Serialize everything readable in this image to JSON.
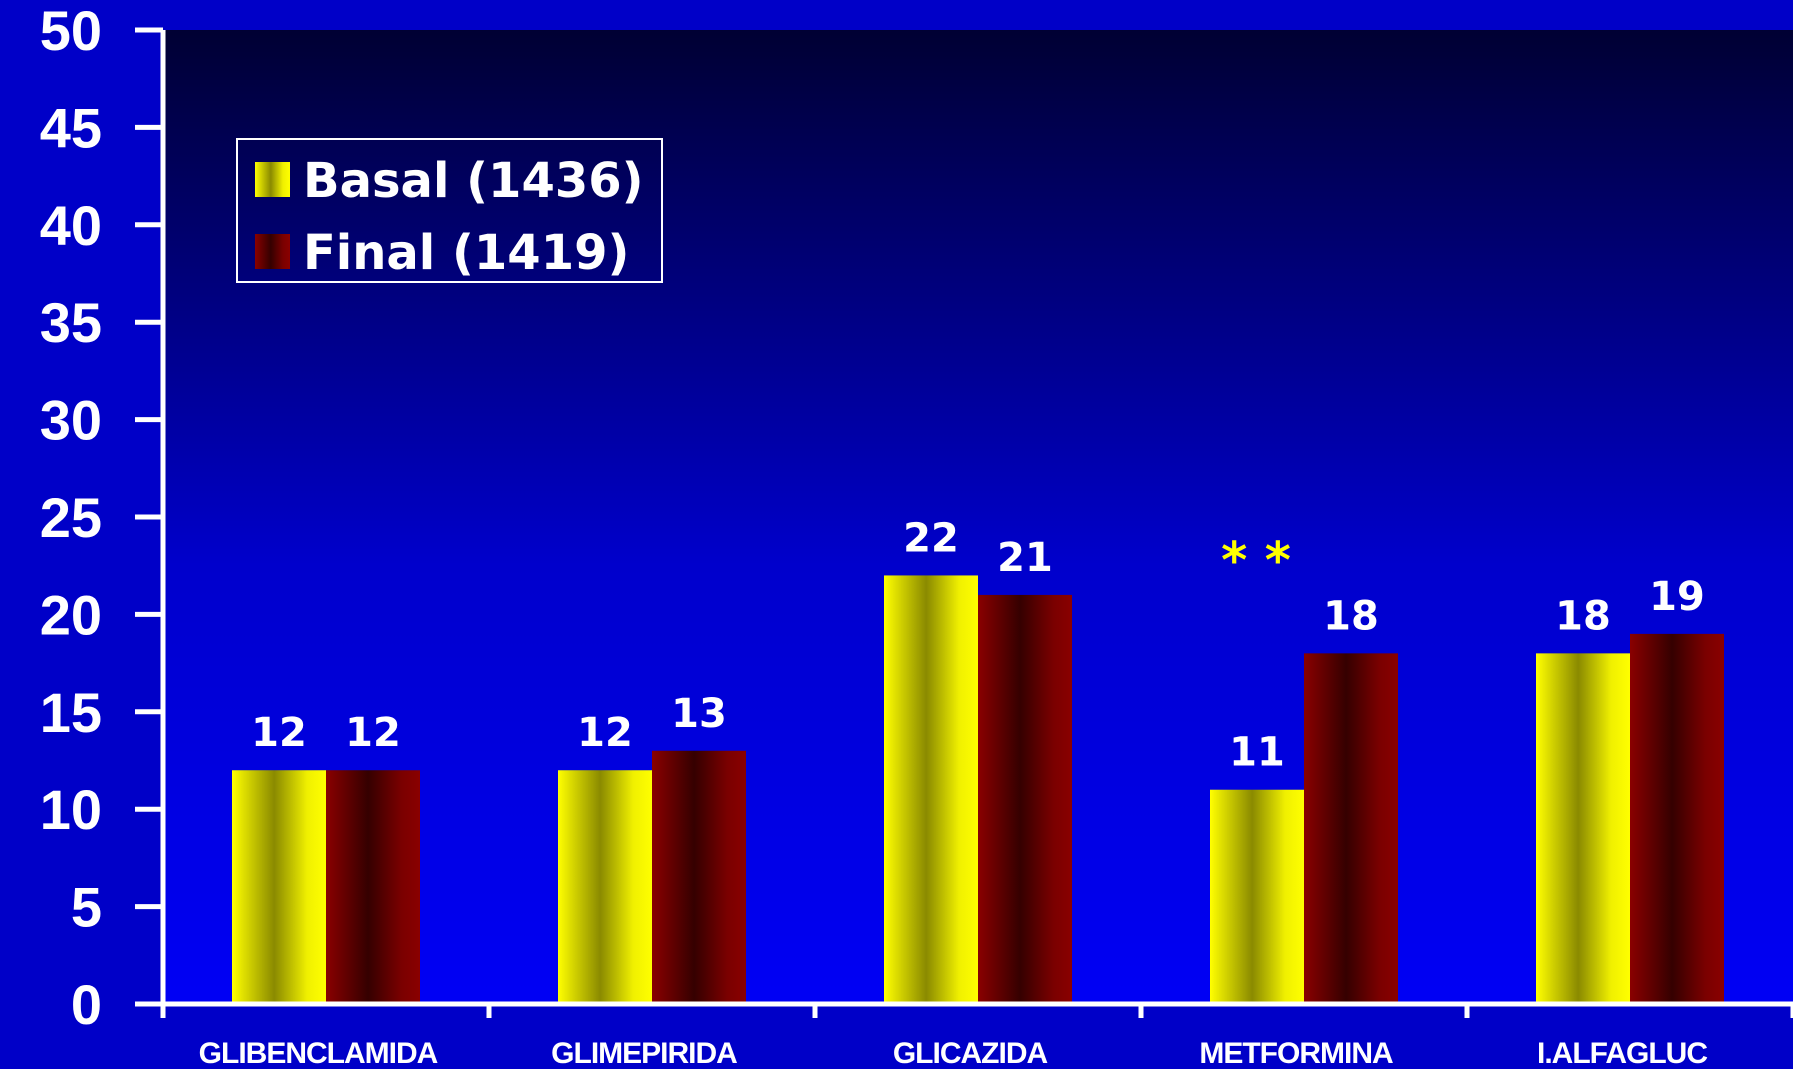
{
  "chart_data": {
    "type": "bar",
    "categories": [
      "GLIBENCLAMIDA",
      "GLIMEPIRIDA",
      "GLICAZIDA",
      "METFORMINA",
      "I.ALFAGLUC"
    ],
    "series": [
      {
        "name": "Basal (1436)",
        "values": [
          12,
          12,
          22,
          11,
          18
        ],
        "color": "#ffff00"
      },
      {
        "name": "Final (1419)",
        "values": [
          12,
          13,
          21,
          18,
          19
        ],
        "color": "#7a0000"
      }
    ],
    "ylim": [
      0,
      50
    ],
    "yticks": [
      0,
      5,
      10,
      15,
      20,
      25,
      30,
      35,
      40,
      45,
      50
    ],
    "legend_position": "top-left",
    "grid": false,
    "annotations": [
      {
        "text": "* *",
        "category": "METFORMINA"
      }
    ],
    "colors": {
      "background_top": "#000033",
      "background_bottom": "#0000f0",
      "axis": "#ffffff",
      "text": "#ffffff",
      "annotation": "#ffff00"
    }
  }
}
